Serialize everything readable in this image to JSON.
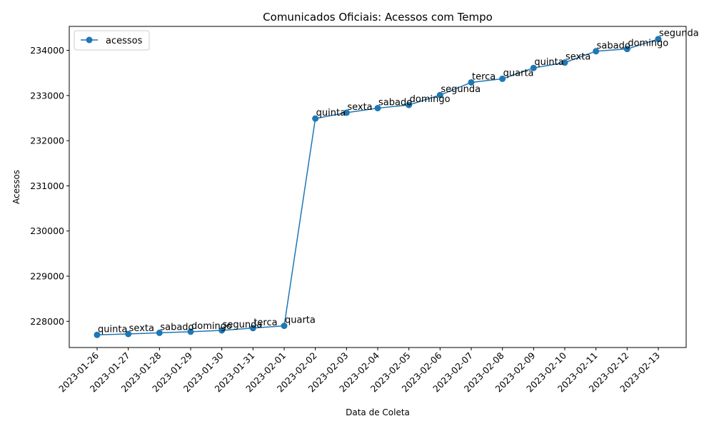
{
  "chart_data": {
    "type": "line",
    "title": "Comunicados Oficiais: Acessos com Tempo",
    "xlabel": "Data de Coleta",
    "ylabel": "Acessos",
    "x": [
      "2023-01-26",
      "2023-01-27",
      "2023-01-28",
      "2023-01-29",
      "2023-01-30",
      "2023-01-31",
      "2023-02-01",
      "2023-02-02",
      "2023-02-03",
      "2023-02-04",
      "2023-02-05",
      "2023-02-06",
      "2023-02-07",
      "2023-02-08",
      "2023-02-09",
      "2023-02-10",
      "2023-02-11",
      "2023-02-12",
      "2023-02-13"
    ],
    "point_dates": [
      "2023-01-26",
      "2023-01-27",
      "2023-01-28",
      "2023-01-29",
      "2023-01-30",
      "2023-01-31",
      "2023-02-01",
      "2023-02-02",
      "2023-02-03",
      "2023-02-04",
      "2023-02-05",
      "2023-02-06",
      "2023-02-07",
      "2023-02-08",
      "2023-02-09",
      "2023-02-10",
      "2023-02-11",
      "2023-02-12",
      "2023-02-13"
    ],
    "series": [
      {
        "name": "acessos",
        "color": "#1f77b4",
        "values": [
          227700,
          227720,
          227745,
          227770,
          227800,
          227850,
          227900,
          232490,
          232620,
          232720,
          232790,
          233010,
          233290,
          233370,
          233610,
          233730,
          233980,
          234030,
          234250
        ]
      }
    ],
    "annotations": [
      "quinta",
      "sexta",
      "sabado",
      "domingo",
      "segunda",
      "terca",
      "quarta",
      "quinta",
      "sexta",
      "sabado",
      "domingo",
      "segunda",
      "terca",
      "quarta",
      "quinta",
      "sexta",
      "sabado",
      "domingo",
      "segunda"
    ],
    "yticks": [
      228000,
      229000,
      230000,
      231000,
      232000,
      233000,
      234000
    ],
    "ylim": [
      227420,
      234530
    ],
    "xlim": [
      "2023-01-26",
      "2023-02-13"
    ],
    "legend": "top-left",
    "grid": false
  }
}
